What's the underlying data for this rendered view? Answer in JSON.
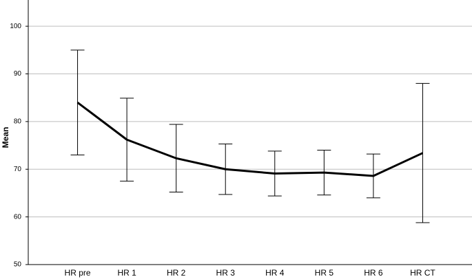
{
  "chart_data": {
    "type": "line",
    "ylabel": "Mean",
    "categories": [
      "HR pre",
      "HR 1",
      "HR 2",
      "HR 3",
      "HR 4",
      "HR 5",
      "HR 6",
      "HR CT"
    ],
    "series": [
      {
        "color": "#000000",
        "values": [
          84.0,
          76.2,
          72.3,
          70.0,
          69.1,
          69.3,
          68.6,
          73.4
        ],
        "errors": [
          11.0,
          8.7,
          7.1,
          5.3,
          4.7,
          4.7,
          4.6,
          14.6
        ]
      }
    ],
    "ylim": [
      50,
      105.5
    ],
    "yticks": [
      50,
      60,
      70,
      80,
      90,
      100
    ],
    "grid": true
  }
}
